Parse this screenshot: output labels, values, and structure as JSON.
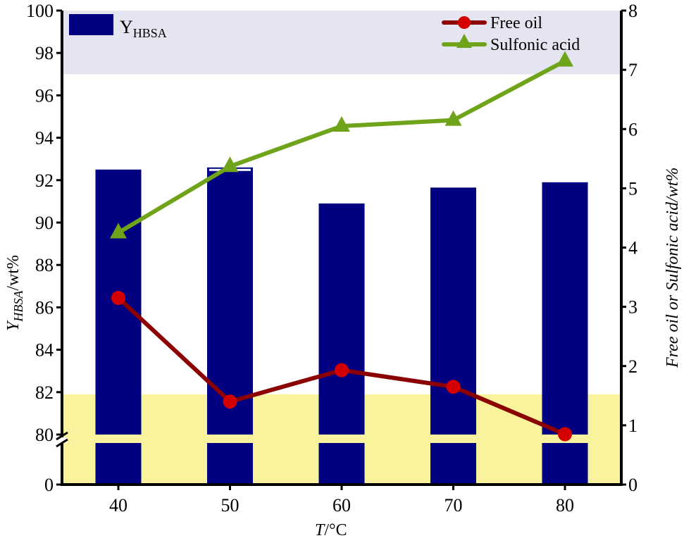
{
  "chart_data": {
    "type": "bar+line",
    "title": "",
    "xlabel": "T/°C",
    "xlabel_parts": {
      "italic": "T",
      "rest": "/°C"
    },
    "ylabel_left": "Y_HBSA/wt%",
    "ylabel_left_parts": {
      "main": "Y",
      "sub": "HBSA",
      "rest": "/wt%"
    },
    "ylabel_right": "Free oil or Sulfonic acid/wt%",
    "categories": [
      40,
      50,
      60,
      70,
      80
    ],
    "left_axis": {
      "ticks": [
        0,
        80,
        82,
        84,
        86,
        88,
        90,
        92,
        94,
        96,
        98,
        100
      ],
      "broken_between": [
        0,
        80
      ],
      "ylim": [
        80,
        100
      ]
    },
    "right_axis": {
      "ticks": [
        0,
        1,
        2,
        3,
        4,
        5,
        6,
        7,
        8
      ],
      "ylim": [
        0,
        8
      ]
    },
    "series": [
      {
        "name": "Y_HBSA",
        "legend_label": "Y",
        "legend_sub": "HBSA",
        "type": "bar",
        "axis": "left",
        "color": "#000080",
        "values": [
          92.5,
          92.6,
          90.9,
          91.65,
          91.9
        ]
      },
      {
        "name": "Free oil",
        "type": "line",
        "marker": "circle",
        "axis": "right",
        "color": "#8B0000",
        "marker_color": "#D40000",
        "values": [
          3.15,
          1.4,
          1.93,
          1.65,
          0.85
        ]
      },
      {
        "name": "Sulfonic acid",
        "type": "line",
        "marker": "triangle",
        "axis": "right",
        "color": "#6FA31A",
        "values": [
          4.25,
          5.37,
          6.05,
          6.15,
          7.15
        ]
      }
    ],
    "bands": [
      {
        "axis": "left",
        "from": 97,
        "to": 100,
        "color": "#E5E5F1"
      },
      {
        "axis": "left",
        "from": 0,
        "to": 81.9,
        "color": "#FAF39E"
      }
    ],
    "legend_position": "top"
  },
  "labels": {
    "x_ticks": [
      "40",
      "50",
      "60",
      "70",
      "80"
    ],
    "left_ticks": [
      "100",
      "98",
      "96",
      "94",
      "92",
      "90",
      "88",
      "86",
      "84",
      "82",
      "80",
      "0"
    ],
    "right_ticks": [
      "8",
      "7",
      "6",
      "5",
      "4",
      "3",
      "2",
      "1",
      "0"
    ],
    "legend_bar_main": "Y",
    "legend_bar_sub": "HBSA",
    "legend_free_oil": "Free oil",
    "legend_sulfonic": "Sulfonic acid",
    "x_title_italic": "T",
    "x_title_rest": "/°C",
    "yl_main": "Y",
    "yl_sub": "HBSA",
    "yl_rest": "/wt%",
    "yr_title": "Free oil or Sulfonic acid/wt%"
  }
}
